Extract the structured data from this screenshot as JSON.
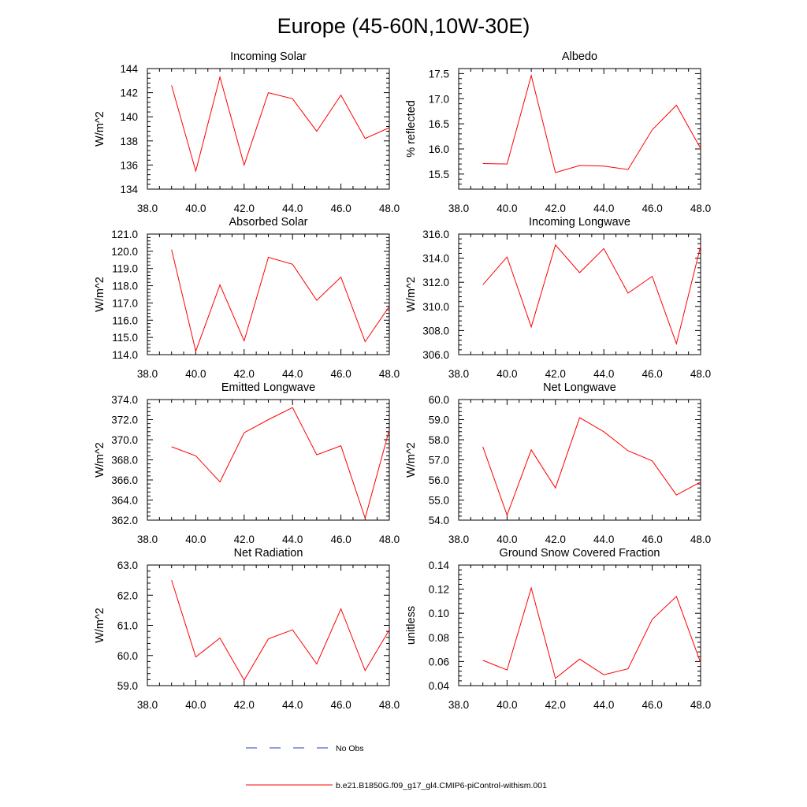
{
  "title": "Europe (45-60N,10W-30E)",
  "legend": {
    "obs_label": "No Obs",
    "obs_color": "#2a3cc0",
    "model_label": "b.e21.B1850G.f09_g17_gl4.CMIP6-piControl-withism.001",
    "model_color": "#ff0000"
  },
  "chart_data": [
    {
      "type": "line",
      "title": "Incoming Solar",
      "ylabel": "W/m^2",
      "xlim": [
        38,
        48
      ],
      "ylim": [
        134,
        144
      ],
      "xticks": [
        38,
        40,
        42,
        44,
        46,
        48
      ],
      "xtick_labels": [
        "38.0",
        "40.0",
        "42.0",
        "44.0",
        "46.0",
        "48.0"
      ],
      "yticks": [
        134,
        136,
        138,
        140,
        142,
        144
      ],
      "ytick_labels": [
        "134",
        "136",
        "138",
        "140",
        "142",
        "144"
      ],
      "x": [
        39,
        40,
        41,
        42,
        43,
        44,
        45,
        46,
        47,
        48
      ],
      "series": [
        {
          "values": [
            142.6,
            135.5,
            143.3,
            136.0,
            142.0,
            141.5,
            138.8,
            141.8,
            138.2,
            139.1
          ]
        }
      ]
    },
    {
      "type": "line",
      "title": "Albedo",
      "ylabel": "% reflected",
      "xlim": [
        38,
        48
      ],
      "ylim": [
        15.2,
        17.6
      ],
      "xticks": [
        38,
        40,
        42,
        44,
        46,
        48
      ],
      "xtick_labels": [
        "38.0",
        "40.0",
        "42.0",
        "44.0",
        "46.0",
        "48.0"
      ],
      "yticks": [
        15.5,
        16.0,
        16.5,
        17.0,
        17.5
      ],
      "ytick_labels": [
        "15.5",
        "16.0",
        "16.5",
        "17.0",
        "17.5"
      ],
      "x": [
        39,
        40,
        41,
        42,
        43,
        44,
        45,
        46,
        47,
        48
      ],
      "series": [
        {
          "values": [
            15.71,
            15.7,
            17.46,
            15.53,
            15.67,
            15.66,
            15.59,
            16.38,
            16.87,
            16.01
          ]
        }
      ]
    },
    {
      "type": "line",
      "title": "Absorbed Solar",
      "ylabel": "W/m^2",
      "xlim": [
        38,
        48
      ],
      "ylim": [
        114,
        121
      ],
      "xticks": [
        38,
        40,
        42,
        44,
        46,
        48
      ],
      "xtick_labels": [
        "38.0",
        "40.0",
        "42.0",
        "44.0",
        "46.0",
        "48.0"
      ],
      "yticks": [
        114,
        115,
        116,
        117,
        118,
        119,
        120,
        121
      ],
      "ytick_labels": [
        "114.0",
        "115.0",
        "116.0",
        "117.0",
        "118.0",
        "119.0",
        "120.0",
        "121.0"
      ],
      "x": [
        39,
        40,
        41,
        42,
        43,
        44,
        45,
        46,
        47,
        48
      ],
      "series": [
        {
          "values": [
            120.1,
            114.2,
            118.05,
            114.8,
            119.65,
            119.25,
            117.15,
            118.5,
            114.75,
            116.8
          ]
        }
      ]
    },
    {
      "type": "line",
      "title": "Incoming Longwave",
      "ylabel": "W/m^2",
      "xlim": [
        38,
        48
      ],
      "ylim": [
        306,
        316
      ],
      "xticks": [
        38,
        40,
        42,
        44,
        46,
        48
      ],
      "xtick_labels": [
        "38.0",
        "40.0",
        "42.0",
        "44.0",
        "46.0",
        "48.0"
      ],
      "yticks": [
        306,
        308,
        310,
        312,
        314,
        316
      ],
      "ytick_labels": [
        "306.0",
        "308.0",
        "310.0",
        "312.0",
        "314.0",
        "316.0"
      ],
      "x": [
        39,
        40,
        41,
        42,
        43,
        44,
        45,
        46,
        47,
        48
      ],
      "series": [
        {
          "values": [
            311.8,
            314.1,
            308.3,
            315.1,
            312.8,
            314.8,
            311.1,
            312.5,
            306.9,
            315.0
          ]
        }
      ]
    },
    {
      "type": "line",
      "title": "Emitted Longwave",
      "ylabel": "W/m^2",
      "xlim": [
        38,
        48
      ],
      "ylim": [
        362,
        374
      ],
      "xticks": [
        38,
        40,
        42,
        44,
        46,
        48
      ],
      "xtick_labels": [
        "38.0",
        "40.0",
        "42.0",
        "44.0",
        "46.0",
        "48.0"
      ],
      "yticks": [
        362,
        364,
        366,
        368,
        370,
        372,
        374
      ],
      "ytick_labels": [
        "362.0",
        "364.0",
        "366.0",
        "368.0",
        "370.0",
        "372.0",
        "374.0"
      ],
      "x": [
        39,
        40,
        41,
        42,
        43,
        44,
        45,
        46,
        47,
        48
      ],
      "series": [
        {
          "values": [
            369.3,
            368.4,
            365.8,
            370.7,
            372.0,
            373.2,
            368.5,
            369.4,
            362.2,
            371.0
          ]
        }
      ]
    },
    {
      "type": "line",
      "title": "Net Longwave",
      "ylabel": "W/m^2",
      "xlim": [
        38,
        48
      ],
      "ylim": [
        54,
        60
      ],
      "xticks": [
        38,
        40,
        42,
        44,
        46,
        48
      ],
      "xtick_labels": [
        "38.0",
        "40.0",
        "42.0",
        "44.0",
        "46.0",
        "48.0"
      ],
      "yticks": [
        54,
        55,
        56,
        57,
        58,
        59,
        60
      ],
      "ytick_labels": [
        "54.0",
        "55.0",
        "56.0",
        "57.0",
        "58.0",
        "59.0",
        "60.0"
      ],
      "x": [
        39,
        40,
        41,
        42,
        43,
        44,
        45,
        46,
        47,
        48
      ],
      "series": [
        {
          "values": [
            57.65,
            54.25,
            57.5,
            55.6,
            59.1,
            58.4,
            57.45,
            56.95,
            55.25,
            55.9
          ]
        }
      ]
    },
    {
      "type": "line",
      "title": "Net Radiation",
      "ylabel": "W/m^2",
      "xlim": [
        38,
        48
      ],
      "ylim": [
        59,
        63
      ],
      "xticks": [
        38,
        40,
        42,
        44,
        46,
        48
      ],
      "xtick_labels": [
        "38.0",
        "40.0",
        "42.0",
        "44.0",
        "46.0",
        "48.0"
      ],
      "yticks": [
        59,
        60,
        61,
        62,
        63
      ],
      "ytick_labels": [
        "59.0",
        "60.0",
        "61.0",
        "62.0",
        "63.0"
      ],
      "x": [
        39,
        40,
        41,
        42,
        43,
        44,
        45,
        46,
        47,
        48
      ],
      "series": [
        {
          "values": [
            62.5,
            59.95,
            60.58,
            59.18,
            60.55,
            60.85,
            59.72,
            61.55,
            59.5,
            60.85
          ]
        }
      ]
    },
    {
      "type": "line",
      "title": "Ground Snow Covered Fraction",
      "ylabel": "unitless",
      "xlim": [
        38,
        48
      ],
      "ylim": [
        0.04,
        0.14
      ],
      "xticks": [
        38,
        40,
        42,
        44,
        46,
        48
      ],
      "xtick_labels": [
        "38.0",
        "40.0",
        "42.0",
        "44.0",
        "46.0",
        "48.0"
      ],
      "yticks": [
        0.04,
        0.06,
        0.08,
        0.1,
        0.12,
        0.14
      ],
      "ytick_labels": [
        "0.04",
        "0.06",
        "0.08",
        "0.10",
        "0.12",
        "0.14"
      ],
      "x": [
        39,
        40,
        41,
        42,
        43,
        44,
        45,
        46,
        47,
        48
      ],
      "series": [
        {
          "values": [
            0.061,
            0.053,
            0.121,
            0.046,
            0.062,
            0.049,
            0.054,
            0.095,
            0.114,
            0.059
          ]
        }
      ]
    }
  ]
}
